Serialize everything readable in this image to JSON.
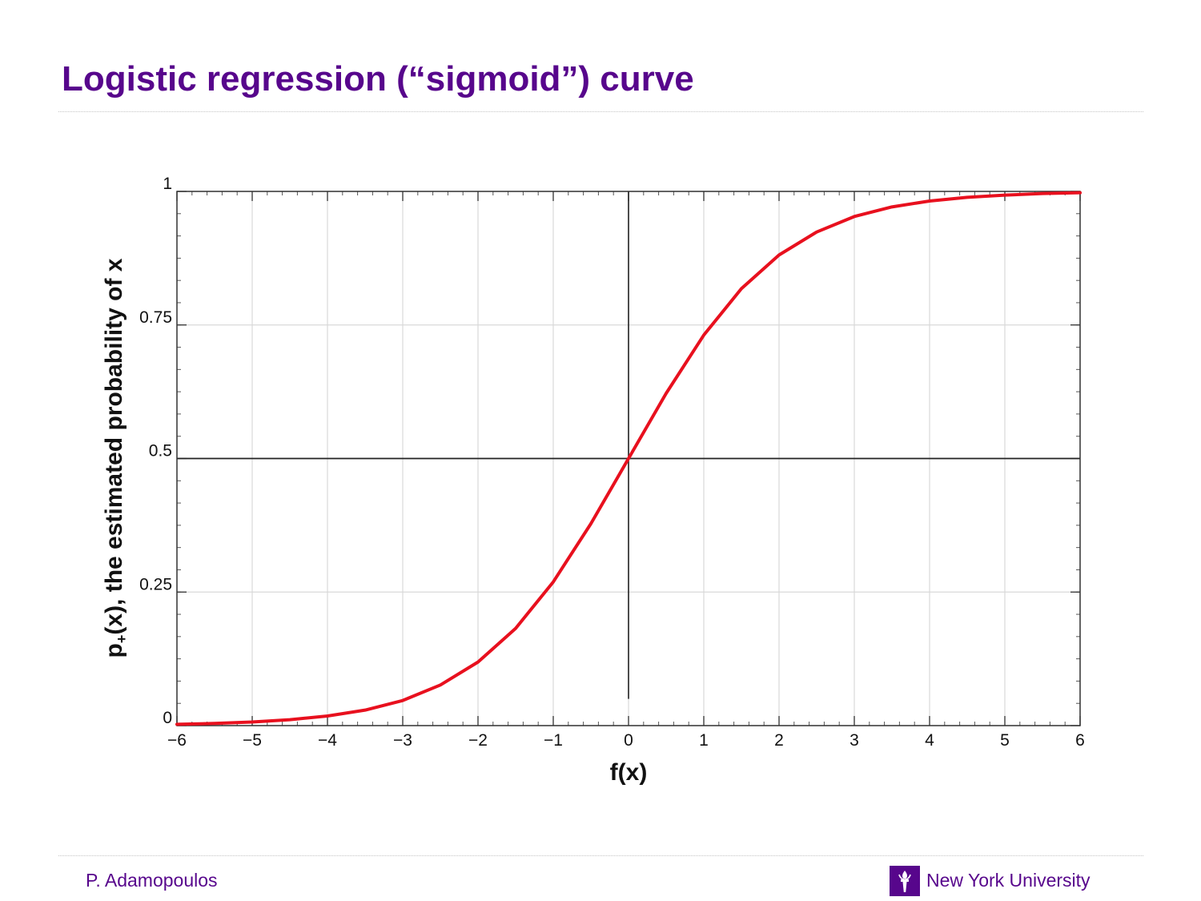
{
  "slide": {
    "title": "Logistic regression (“sigmoid”) curve",
    "author": "P. Adamopoulos",
    "organization": "New York University",
    "logo_icon": "nyu-torch-icon",
    "brand_color": "#57068c"
  },
  "chart_data": {
    "type": "line",
    "function": "sigmoid",
    "xlabel": "f(x)",
    "ylabel_prefix": "p",
    "ylabel_subscript": "+",
    "ylabel_suffix": "(x), the estimated probability of x",
    "xlim": [
      -6,
      6
    ],
    "ylim": [
      0,
      1
    ],
    "x_ticks": [
      -6,
      -5,
      -4,
      -3,
      -2,
      -1,
      0,
      1,
      2,
      3,
      4,
      5,
      6
    ],
    "x_tick_labels": [
      "−6",
      "−5",
      "−4",
      "−3",
      "−2",
      "−1",
      "0",
      "1",
      "2",
      "3",
      "4",
      "5",
      "6"
    ],
    "y_ticks": [
      0,
      0.25,
      0.5,
      0.75,
      1
    ],
    "y_tick_labels": [
      "0",
      "0.25",
      "0.5",
      "0.75",
      "1"
    ],
    "grid": true,
    "reference_lines": [
      {
        "orientation": "horizontal",
        "value": 0.5
      },
      {
        "orientation": "vertical",
        "value": 0,
        "from": 0.05,
        "to": 1
      }
    ],
    "series": [
      {
        "color": "#e8101e",
        "x": [
          -6,
          -5.5,
          -5,
          -4.5,
          -4,
          -3.5,
          -3,
          -2.5,
          -2,
          -1.5,
          -1,
          -0.5,
          0,
          0.5,
          1,
          1.5,
          2,
          2.5,
          3,
          3.5,
          4,
          4.5,
          5,
          5.5,
          6
        ],
        "y": [
          0.0025,
          0.0041,
          0.0067,
          0.011,
          0.018,
          0.029,
          0.047,
          0.076,
          0.119,
          0.182,
          0.269,
          0.378,
          0.5,
          0.622,
          0.731,
          0.818,
          0.881,
          0.924,
          0.953,
          0.971,
          0.982,
          0.989,
          0.993,
          0.996,
          0.9975
        ]
      }
    ]
  }
}
